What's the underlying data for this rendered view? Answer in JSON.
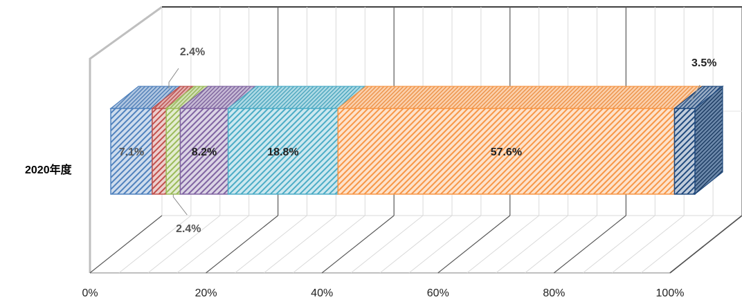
{
  "chart_data": {
    "type": "bar",
    "orientation": "horizontal",
    "stacked": "100%",
    "three_d": true,
    "categories": [
      "2020年度"
    ],
    "series": [
      {
        "values": [
          7.1
        ],
        "label": "7.1%",
        "color": "#4F81BD"
      },
      {
        "values": [
          2.4
        ],
        "label": "2.4%",
        "color": "#C0504D"
      },
      {
        "values": [
          2.4
        ],
        "label": "2.4%",
        "color": "#9BBB59"
      },
      {
        "values": [
          8.2
        ],
        "label": "8.2%",
        "color": "#8064A2"
      },
      {
        "values": [
          18.8
        ],
        "label": "18.8%",
        "color": "#4BACC6"
      },
      {
        "values": [
          57.6
        ],
        "label": "57.6%",
        "color": "#F79646"
      },
      {
        "values": [
          3.5
        ],
        "label": "3.5%",
        "color": "#1F497D"
      }
    ],
    "x_ticks": [
      "0%",
      "20%",
      "40%",
      "60%",
      "80%",
      "100%"
    ],
    "xlim": [
      0,
      100
    ],
    "grid": true,
    "legend": "none",
    "title": "",
    "xlabel": "",
    "ylabel": ""
  }
}
